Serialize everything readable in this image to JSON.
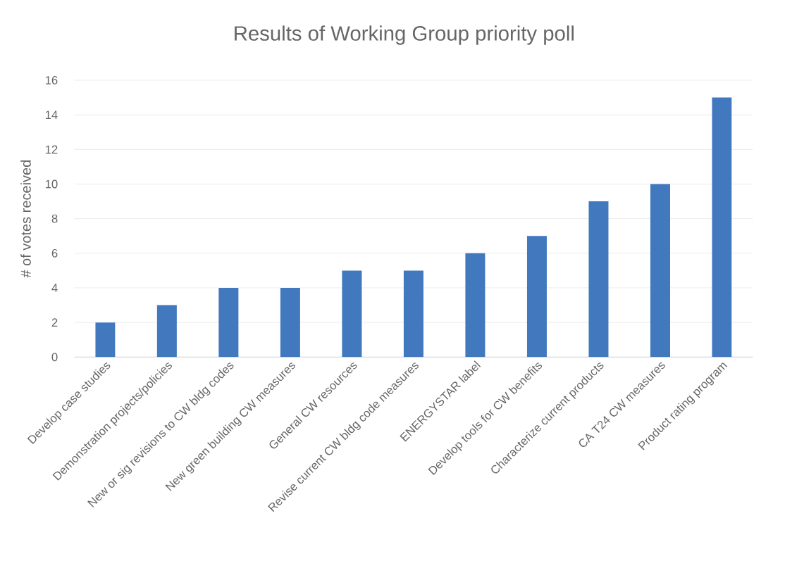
{
  "chart_data": {
    "type": "bar",
    "title": "Results of Working Group priority poll",
    "ylabel": "# of votes received",
    "categories": [
      "Develop case studies",
      "Demonstration projects/policies",
      "New or sig revisions to CW bldg codes",
      "New green building CW measures",
      "General CW resources",
      "Revise current CW  bldg code measures",
      "ENERGYSTAR label",
      "Develop tools for CW benefits",
      "Characterize current products",
      "CA T24 CW measures",
      "Product rating program"
    ],
    "values": [
      2,
      3,
      4,
      4,
      5,
      5,
      6,
      7,
      9,
      10,
      15
    ],
    "color": "#4178be",
    "ylim": [
      0,
      16
    ],
    "yticks": [
      0,
      2,
      4,
      6,
      8,
      10,
      12,
      14,
      16
    ],
    "grid": "y"
  }
}
